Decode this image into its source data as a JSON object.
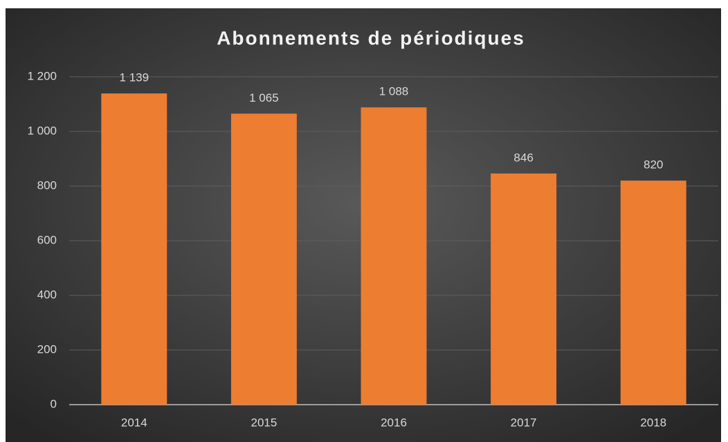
{
  "chart_data": {
    "type": "bar",
    "title": "Abonnements de périodiques",
    "categories": [
      "2014",
      "2015",
      "2016",
      "2017",
      "2018"
    ],
    "values": [
      1139,
      1065,
      1088,
      846,
      820
    ],
    "value_labels": [
      "1 139",
      "1 065",
      "1 088",
      "846",
      "820"
    ],
    "color": "#ed7d31",
    "ylim": [
      0,
      1200
    ],
    "yticks": [
      0,
      200,
      400,
      600,
      800,
      {
        "value": 1000,
        "label": "1 000"
      },
      {
        "value": 1200,
        "label": "1 200"
      }
    ],
    "grid": true
  }
}
